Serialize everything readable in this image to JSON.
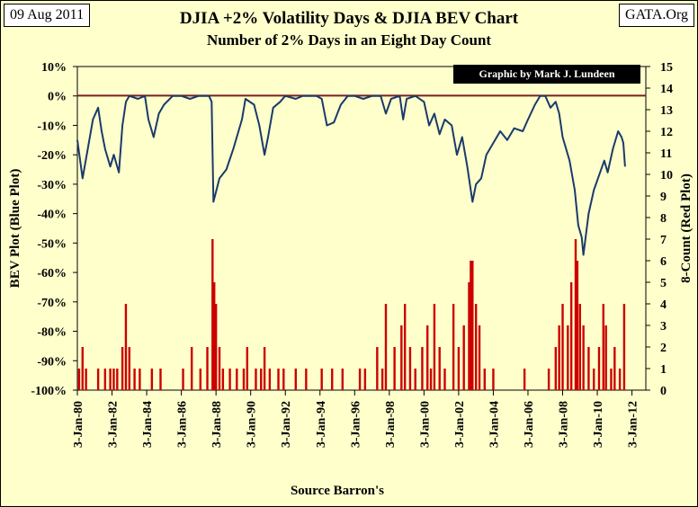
{
  "header": {
    "date": "09 Aug 2011",
    "site": "GATA.Org",
    "credit": "Graphic by Mark J. Lundeen"
  },
  "chart_data": {
    "type": "line+bar",
    "title": "DJIA +2% Volatility Days & DJIA BEV Chart",
    "subtitle": "Number of 2% Days in an Eight Day Count",
    "xlabel": "Source Barron's",
    "ylabel_left": "BEV Plot (Blue Plot)",
    "ylabel_right": "8-Count (Red Plot)",
    "x_range": [
      1980.0,
      2012.8
    ],
    "left_axis": {
      "min": -100,
      "max": 10,
      "step": 10,
      "unit": "%"
    },
    "right_axis": {
      "min": 0,
      "max": 15,
      "step": 1
    },
    "x_ticks": [
      "3-Jan-80",
      "3-Jan-82",
      "3-Jan-84",
      "3-Jan-86",
      "3-Jan-88",
      "3-Jan-90",
      "3-Jan-92",
      "3-Jan-94",
      "3-Jan-96",
      "3-Jan-98",
      "3-Jan-00",
      "3-Jan-02",
      "3-Jan-04",
      "3-Jan-06",
      "3-Jan-08",
      "3-Jan-10",
      "3-Jan-12"
    ],
    "x_tick_years": [
      1980,
      1982,
      1984,
      1986,
      1988,
      1990,
      1992,
      1994,
      1996,
      1998,
      2000,
      2002,
      2004,
      2006,
      2008,
      2010,
      2012
    ],
    "left_ticks": [
      "10%",
      "0%",
      "-10%",
      "-20%",
      "-30%",
      "-40%",
      "-50%",
      "-60%",
      "-70%",
      "-80%",
      "-90%",
      "-100%"
    ],
    "right_ticks": [
      "15",
      "14",
      "13",
      "12",
      "11",
      "10",
      "9",
      "8",
      "7",
      "6",
      "5",
      "4",
      "3",
      "2",
      "1",
      "0"
    ],
    "reference_line": {
      "axis": "right",
      "value": 13.65,
      "color": "#7b1f1f"
    },
    "series": [
      {
        "name": "BEV",
        "axis": "left",
        "color": "#1a3a6b",
        "points": [
          [
            1980.0,
            -15
          ],
          [
            1980.3,
            -28
          ],
          [
            1980.6,
            -18
          ],
          [
            1980.9,
            -8
          ],
          [
            1981.2,
            -4
          ],
          [
            1981.4,
            -12
          ],
          [
            1981.6,
            -18
          ],
          [
            1981.9,
            -24
          ],
          [
            1982.1,
            -20
          ],
          [
            1982.4,
            -26
          ],
          [
            1982.6,
            -10
          ],
          [
            1982.8,
            -2
          ],
          [
            1983.0,
            0
          ],
          [
            1983.5,
            -1
          ],
          [
            1983.9,
            0
          ],
          [
            1984.1,
            -8
          ],
          [
            1984.4,
            -14
          ],
          [
            1984.7,
            -6
          ],
          [
            1985.0,
            -3
          ],
          [
            1985.5,
            0
          ],
          [
            1986.0,
            0
          ],
          [
            1986.5,
            -1
          ],
          [
            1987.0,
            0
          ],
          [
            1987.6,
            0
          ],
          [
            1987.75,
            -2
          ],
          [
            1987.85,
            -36
          ],
          [
            1988.2,
            -28
          ],
          [
            1988.6,
            -25
          ],
          [
            1989.0,
            -18
          ],
          [
            1989.5,
            -8
          ],
          [
            1989.7,
            -1
          ],
          [
            1990.2,
            -3
          ],
          [
            1990.5,
            -10
          ],
          [
            1990.8,
            -20
          ],
          [
            1991.0,
            -14
          ],
          [
            1991.3,
            -4
          ],
          [
            1991.7,
            -2
          ],
          [
            1992.0,
            0
          ],
          [
            1992.6,
            -1
          ],
          [
            1993.0,
            0
          ],
          [
            1993.8,
            0
          ],
          [
            1994.1,
            -1
          ],
          [
            1994.4,
            -10
          ],
          [
            1994.8,
            -9
          ],
          [
            1995.2,
            -3
          ],
          [
            1995.6,
            0
          ],
          [
            1996.0,
            0
          ],
          [
            1996.5,
            -1
          ],
          [
            1997.0,
            0
          ],
          [
            1997.5,
            0
          ],
          [
            1997.8,
            -6
          ],
          [
            1998.1,
            -1
          ],
          [
            1998.6,
            0
          ],
          [
            1998.8,
            -8
          ],
          [
            1999.0,
            -1
          ],
          [
            1999.5,
            0
          ],
          [
            2000.0,
            -2
          ],
          [
            2000.3,
            -10
          ],
          [
            2000.6,
            -6
          ],
          [
            2000.9,
            -13
          ],
          [
            2001.2,
            -8
          ],
          [
            2001.6,
            -10
          ],
          [
            2001.9,
            -20
          ],
          [
            2002.2,
            -14
          ],
          [
            2002.5,
            -24
          ],
          [
            2002.8,
            -36
          ],
          [
            2003.0,
            -30
          ],
          [
            2003.3,
            -28
          ],
          [
            2003.6,
            -20
          ],
          [
            2004.0,
            -16
          ],
          [
            2004.4,
            -12
          ],
          [
            2004.8,
            -15
          ],
          [
            2005.2,
            -11
          ],
          [
            2005.7,
            -12
          ],
          [
            2006.0,
            -8
          ],
          [
            2006.4,
            -3
          ],
          [
            2006.7,
            0
          ],
          [
            2007.0,
            0
          ],
          [
            2007.3,
            -4
          ],
          [
            2007.6,
            -2
          ],
          [
            2007.8,
            -6
          ],
          [
            2008.0,
            -14
          ],
          [
            2008.4,
            -22
          ],
          [
            2008.7,
            -32
          ],
          [
            2008.9,
            -44
          ],
          [
            2009.1,
            -48
          ],
          [
            2009.2,
            -54
          ],
          [
            2009.5,
            -40
          ],
          [
            2009.8,
            -32
          ],
          [
            2010.1,
            -27
          ],
          [
            2010.4,
            -22
          ],
          [
            2010.6,
            -26
          ],
          [
            2010.9,
            -18
          ],
          [
            2011.2,
            -12
          ],
          [
            2011.4,
            -14
          ],
          [
            2011.5,
            -16
          ],
          [
            2011.6,
            -24
          ]
        ]
      },
      {
        "name": "8-Count",
        "axis": "right",
        "color": "#cc0000",
        "bars": [
          [
            1980.1,
            1
          ],
          [
            1980.3,
            2
          ],
          [
            1980.5,
            1
          ],
          [
            1981.2,
            1
          ],
          [
            1981.6,
            1
          ],
          [
            1981.9,
            1
          ],
          [
            1982.1,
            1
          ],
          [
            1982.3,
            1
          ],
          [
            1982.6,
            2
          ],
          [
            1982.8,
            4
          ],
          [
            1983.0,
            2
          ],
          [
            1983.3,
            1
          ],
          [
            1983.6,
            1
          ],
          [
            1984.3,
            1
          ],
          [
            1984.8,
            1
          ],
          [
            1986.1,
            1
          ],
          [
            1986.6,
            2
          ],
          [
            1987.1,
            1
          ],
          [
            1987.5,
            2
          ],
          [
            1987.8,
            7
          ],
          [
            1987.9,
            5
          ],
          [
            1988.0,
            4
          ],
          [
            1988.2,
            2
          ],
          [
            1988.4,
            1
          ],
          [
            1988.8,
            1
          ],
          [
            1989.2,
            1
          ],
          [
            1989.6,
            1
          ],
          [
            1989.8,
            2
          ],
          [
            1990.3,
            1
          ],
          [
            1990.6,
            1
          ],
          [
            1990.8,
            2
          ],
          [
            1991.1,
            1
          ],
          [
            1991.6,
            1
          ],
          [
            1991.9,
            1
          ],
          [
            1992.6,
            1
          ],
          [
            1993.2,
            1
          ],
          [
            1994.1,
            1
          ],
          [
            1994.7,
            1
          ],
          [
            1995.3,
            1
          ],
          [
            1996.3,
            1
          ],
          [
            1996.6,
            1
          ],
          [
            1997.3,
            2
          ],
          [
            1997.6,
            1
          ],
          [
            1997.8,
            4
          ],
          [
            1998.3,
            2
          ],
          [
            1998.7,
            3
          ],
          [
            1998.9,
            4
          ],
          [
            1999.2,
            2
          ],
          [
            1999.5,
            1
          ],
          [
            1999.9,
            2
          ],
          [
            2000.2,
            3
          ],
          [
            2000.4,
            1
          ],
          [
            2000.6,
            4
          ],
          [
            2000.9,
            2
          ],
          [
            2001.2,
            1
          ],
          [
            2001.7,
            4
          ],
          [
            2002.0,
            2
          ],
          [
            2002.3,
            3
          ],
          [
            2002.6,
            5
          ],
          [
            2002.7,
            6
          ],
          [
            2002.8,
            6
          ],
          [
            2003.0,
            4
          ],
          [
            2003.2,
            3
          ],
          [
            2003.5,
            1
          ],
          [
            2004.0,
            1
          ],
          [
            2005.8,
            1
          ],
          [
            2007.2,
            1
          ],
          [
            2007.6,
            2
          ],
          [
            2007.8,
            3
          ],
          [
            2008.0,
            4
          ],
          [
            2008.3,
            3
          ],
          [
            2008.5,
            5
          ],
          [
            2008.75,
            7
          ],
          [
            2008.85,
            6
          ],
          [
            2009.0,
            4
          ],
          [
            2009.2,
            3
          ],
          [
            2009.5,
            2
          ],
          [
            2009.8,
            1
          ],
          [
            2010.1,
            2
          ],
          [
            2010.35,
            4
          ],
          [
            2010.5,
            3
          ],
          [
            2010.8,
            1
          ],
          [
            2011.0,
            2
          ],
          [
            2011.3,
            1
          ],
          [
            2011.55,
            4
          ]
        ]
      }
    ]
  }
}
